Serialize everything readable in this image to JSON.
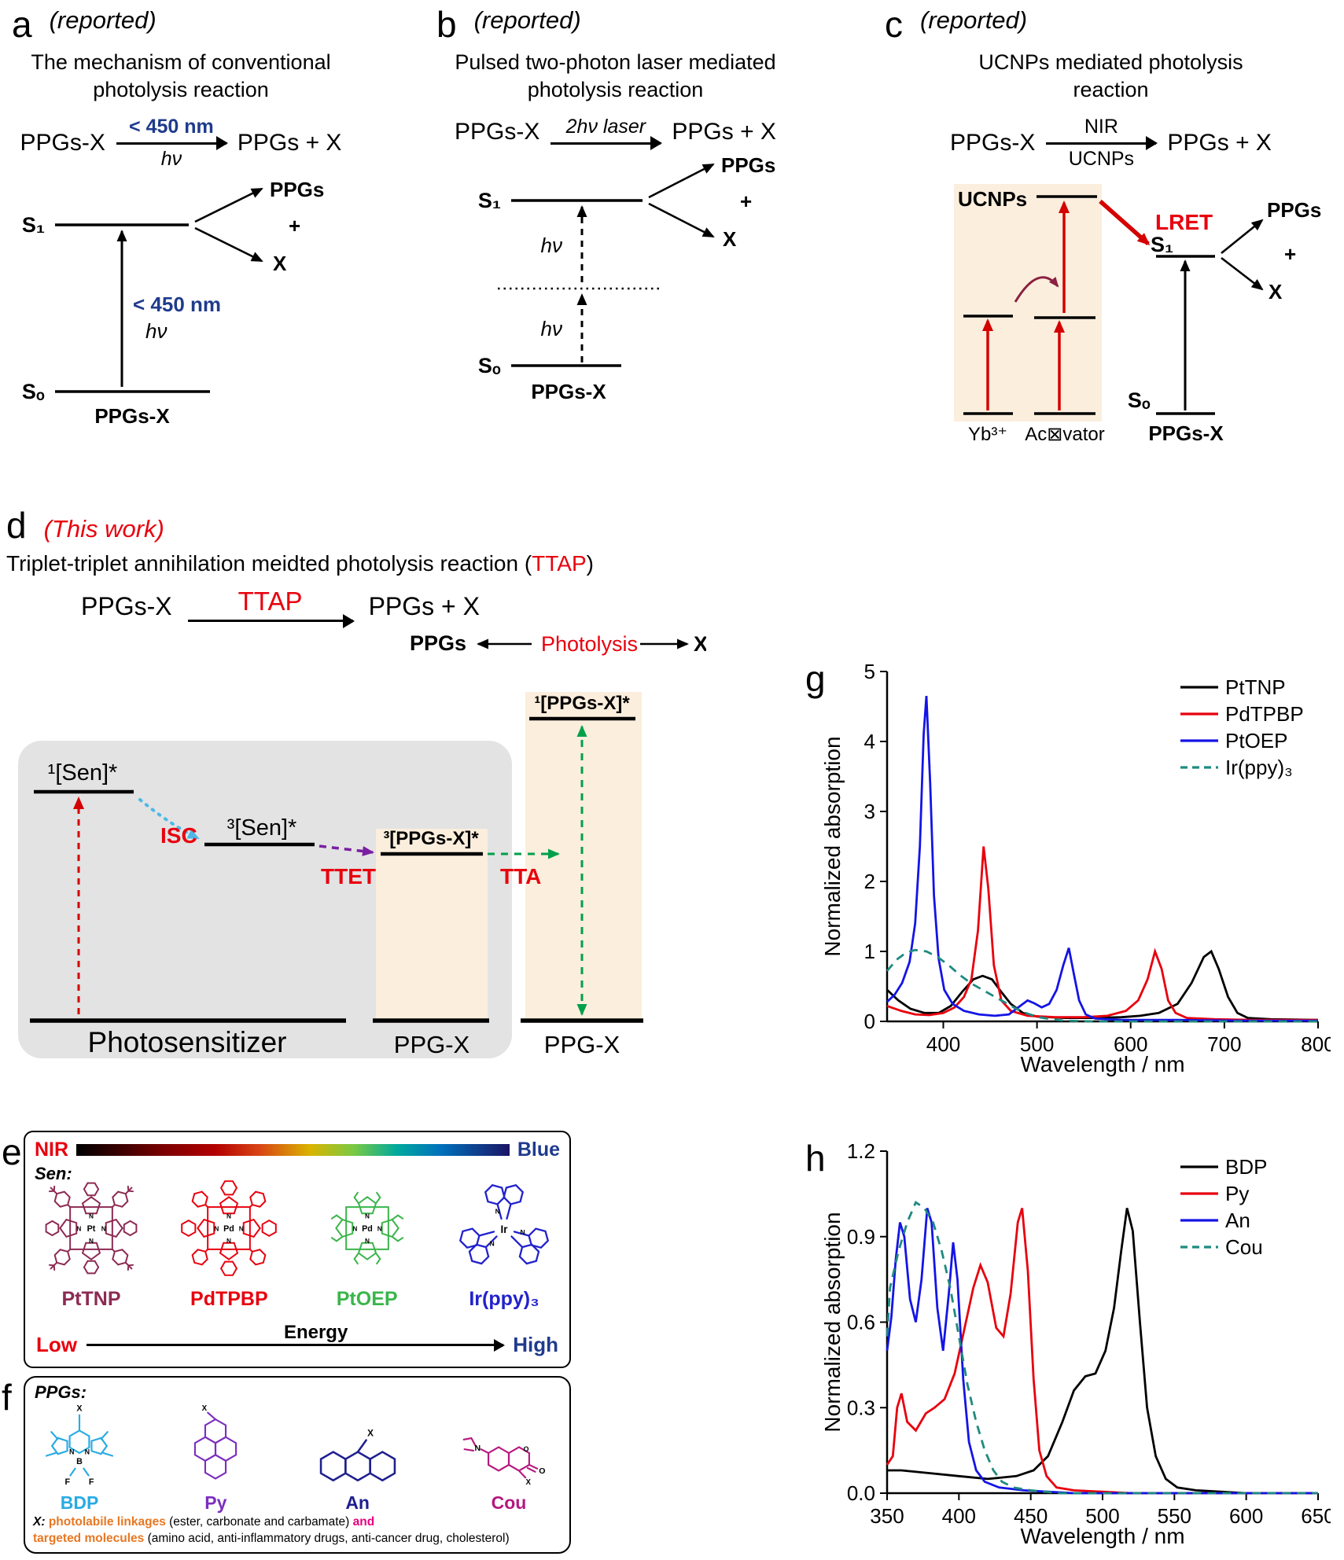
{
  "panel_a": {
    "label": "a",
    "tag": "(reported)",
    "title_line1": "The mechanism of conventional",
    "title_line2": "photolysis reaction",
    "reactant": "PPGs-X",
    "arrow_top": "< 450 nm",
    "arrow_bottom": "hν",
    "product": "PPGs + X",
    "s1": "S₁",
    "s0": "Sₒ",
    "exc_top": "< 450 nm",
    "exc_bottom": "hν",
    "ground": "PPGs-X",
    "prod_top": "PPGs",
    "plus": "+",
    "prod_bottom": "X"
  },
  "panel_b": {
    "label": "b",
    "tag": "(reported)",
    "title_line1": "Pulsed two-photon laser mediated",
    "title_line2": "photolysis reaction",
    "reactant": "PPGs-X",
    "arrow_top": "2hν laser",
    "product": "PPGs + X",
    "s1": "S₁",
    "s0": "Sₒ",
    "hv1": "hν",
    "hv2": "hν",
    "ground": "PPGs-X",
    "prod_top": "PPGs",
    "plus": "+",
    "prod_bottom": "X"
  },
  "panel_c": {
    "label": "c",
    "tag": "(reported)",
    "title_line1": "UCNPs mediated photolysis",
    "title_line2": "reaction",
    "reactant": "PPGs-X",
    "arrow_top": "NIR",
    "arrow_bottom": "UCNPs",
    "product": "PPGs + X",
    "ucnps": "UCNPs",
    "lret": "LRET",
    "yb": "Yb³⁺",
    "activator": "Ac⊠vator",
    "s1": "S₁",
    "s0": "Sₒ",
    "ground": "PPGs-X",
    "prod_top": "PPGs",
    "plus": "+",
    "prod_bottom": "X"
  },
  "panel_d": {
    "label": "d",
    "tag": "(This work)",
    "title_black1": "Triplet-triplet annihilation meidted photolysis reaction (",
    "title_red": "TTAP",
    "title_black2": ")",
    "reactant": "PPGs-X",
    "arrow_top": "TTAP",
    "product": "PPGs + X",
    "ppgs": "PPGs",
    "photolysis": "Photolysis",
    "x": "X",
    "sen1": "¹[Sen]*",
    "sen3": "³[Sen]*",
    "isc": "ISC",
    "ttet": "TTET",
    "tta": "TTA",
    "ppgsx3": "³[PPGs-X]*",
    "ppgsx1": "¹[PPGs-X]*",
    "photosensitizer": "Photosensitizer",
    "ppgx_left": "PPG-X",
    "ppgx_right": "PPG-X"
  },
  "panel_e": {
    "label": "e",
    "nir": "NIR",
    "blue": "Blue",
    "sen": "Sen:",
    "molecules": [
      {
        "name": "PtTNP",
        "metal": "Pt",
        "color": "#8c2a52"
      },
      {
        "name": "PdTPBP",
        "metal": "Pd",
        "color": "#e8000d"
      },
      {
        "name": "PtOEP",
        "metal": "Pd",
        "color": "#3ab54a"
      },
      {
        "name": "Ir(ppy)₃",
        "metal": "Ir",
        "color": "#2222cc"
      }
    ],
    "low": "Low",
    "energy": "Energy",
    "high": "High"
  },
  "panel_f": {
    "label": "f",
    "ppgs": "PPGs:",
    "molecules": [
      {
        "name": "BDP",
        "color": "#29abe2"
      },
      {
        "name": "Py",
        "color": "#7b2fbe"
      },
      {
        "name": "An",
        "color": "#1f1f8f"
      },
      {
        "name": "Cou",
        "color": "#b5177e"
      }
    ],
    "x_label": "X:",
    "line1_orange": "photolabile linkages",
    "line1_black": " (ester, carbonate and carbamate) ",
    "line1_pink": "and",
    "line2_orange": "targeted molecules",
    "line2_black": " (amino acid, anti-inflammatory drugs, anti-cancer drug, cholesterol)"
  },
  "panel_g_label": "g",
  "panel_h_label": "h",
  "colors": {
    "accent_red": "#e8000d",
    "navy": "#1f3b8c",
    "teal_dashed": "#1f8a80",
    "peach_bg": "#fbeedd",
    "gray_box": "#e3e3e3"
  },
  "chart_data": [
    {
      "id": "g",
      "type": "line",
      "title": "",
      "xlabel": "Wavelength / nm",
      "ylabel": "Normalized absorption",
      "xlim": [
        340,
        800
      ],
      "ylim": [
        0,
        5
      ],
      "xticks": [
        400,
        500,
        600,
        700,
        800
      ],
      "yticks": [
        "0",
        "1",
        "2",
        "3",
        "4",
        "5"
      ],
      "grid": false,
      "legend_position": "top-right",
      "series": [
        {
          "name": "PtTNP",
          "color": "#000000",
          "dash": null,
          "points": [
            [
              340,
              0.45
            ],
            [
              352,
              0.3
            ],
            [
              365,
              0.18
            ],
            [
              380,
              0.12
            ],
            [
              395,
              0.12
            ],
            [
              408,
              0.22
            ],
            [
              420,
              0.42
            ],
            [
              432,
              0.6
            ],
            [
              442,
              0.65
            ],
            [
              452,
              0.6
            ],
            [
              462,
              0.42
            ],
            [
              472,
              0.25
            ],
            [
              485,
              0.12
            ],
            [
              500,
              0.07
            ],
            [
              530,
              0.05
            ],
            [
              560,
              0.05
            ],
            [
              590,
              0.06
            ],
            [
              610,
              0.08
            ],
            [
              630,
              0.12
            ],
            [
              650,
              0.25
            ],
            [
              665,
              0.55
            ],
            [
              678,
              0.92
            ],
            [
              686,
              1.0
            ],
            [
              694,
              0.75
            ],
            [
              704,
              0.35
            ],
            [
              714,
              0.12
            ],
            [
              725,
              0.05
            ],
            [
              750,
              0.03
            ],
            [
              800,
              0.02
            ]
          ]
        },
        {
          "name": "PdTPBP",
          "color": "#e8000d",
          "dash": null,
          "points": [
            [
              340,
              0.22
            ],
            [
              355,
              0.15
            ],
            [
              370,
              0.1
            ],
            [
              385,
              0.09
            ],
            [
              400,
              0.12
            ],
            [
              412,
              0.2
            ],
            [
              422,
              0.35
            ],
            [
              430,
              0.6
            ],
            [
              437,
              1.3
            ],
            [
              443,
              2.5
            ],
            [
              448,
              1.9
            ],
            [
              454,
              0.8
            ],
            [
              462,
              0.3
            ],
            [
              472,
              0.15
            ],
            [
              490,
              0.08
            ],
            [
              520,
              0.06
            ],
            [
              550,
              0.06
            ],
            [
              575,
              0.08
            ],
            [
              595,
              0.15
            ],
            [
              608,
              0.3
            ],
            [
              618,
              0.6
            ],
            [
              626,
              1.0
            ],
            [
              633,
              0.75
            ],
            [
              640,
              0.3
            ],
            [
              648,
              0.12
            ],
            [
              660,
              0.05
            ],
            [
              690,
              0.03
            ],
            [
              730,
              0.02
            ],
            [
              800,
              0.02
            ]
          ]
        },
        {
          "name": "PtOEP",
          "color": "#1414e6",
          "dash": null,
          "points": [
            [
              340,
              0.28
            ],
            [
              348,
              0.38
            ],
            [
              356,
              0.55
            ],
            [
              364,
              0.85
            ],
            [
              370,
              1.4
            ],
            [
              375,
              2.5
            ],
            [
              379,
              4.1
            ],
            [
              382,
              4.65
            ],
            [
              386,
              3.4
            ],
            [
              390,
              1.8
            ],
            [
              395,
              0.9
            ],
            [
              401,
              0.45
            ],
            [
              410,
              0.25
            ],
            [
              422,
              0.15
            ],
            [
              438,
              0.1
            ],
            [
              455,
              0.08
            ],
            [
              470,
              0.1
            ],
            [
              482,
              0.22
            ],
            [
              490,
              0.3
            ],
            [
              497,
              0.26
            ],
            [
              505,
              0.2
            ],
            [
              513,
              0.25
            ],
            [
              521,
              0.45
            ],
            [
              528,
              0.8
            ],
            [
              534,
              1.05
            ],
            [
              539,
              0.7
            ],
            [
              545,
              0.3
            ],
            [
              552,
              0.1
            ],
            [
              562,
              0.04
            ],
            [
              590,
              0.02
            ],
            [
              650,
              0.02
            ],
            [
              720,
              0.01
            ],
            [
              800,
              0.01
            ]
          ]
        },
        {
          "name": "Ir(ppy)₃",
          "color": "#1f8a80",
          "dash": "11,8",
          "points": [
            [
              340,
              0.72
            ],
            [
              350,
              0.88
            ],
            [
              360,
              0.98
            ],
            [
              370,
              1.02
            ],
            [
              382,
              1.0
            ],
            [
              394,
              0.92
            ],
            [
              406,
              0.8
            ],
            [
              418,
              0.66
            ],
            [
              430,
              0.54
            ],
            [
              442,
              0.45
            ],
            [
              454,
              0.36
            ],
            [
              466,
              0.27
            ],
            [
              478,
              0.18
            ],
            [
              490,
              0.11
            ],
            [
              502,
              0.06
            ],
            [
              515,
              0.03
            ],
            [
              530,
              0.01
            ],
            [
              560,
              0.0
            ],
            [
              650,
              0.0
            ],
            [
              800,
              0.0
            ]
          ]
        }
      ]
    },
    {
      "id": "h",
      "type": "line",
      "title": "",
      "xlabel": "Wavelength / nm",
      "ylabel": "Normalized absorption",
      "xlim": [
        350,
        650
      ],
      "ylim": [
        0,
        1.2
      ],
      "xticks": [
        350,
        400,
        450,
        500,
        550,
        600,
        650
      ],
      "yticks": [
        "0.0",
        "0.3",
        "0.6",
        "0.9",
        "1.2"
      ],
      "grid": false,
      "legend_position": "top-right",
      "series": [
        {
          "name": "BDP",
          "color": "#000000",
          "dash": null,
          "points": [
            [
              350,
              0.08
            ],
            [
              360,
              0.08
            ],
            [
              380,
              0.07
            ],
            [
              400,
              0.06
            ],
            [
              420,
              0.05
            ],
            [
              440,
              0.06
            ],
            [
              452,
              0.08
            ],
            [
              462,
              0.13
            ],
            [
              472,
              0.25
            ],
            [
              480,
              0.36
            ],
            [
              488,
              0.41
            ],
            [
              495,
              0.42
            ],
            [
              502,
              0.5
            ],
            [
              508,
              0.65
            ],
            [
              513,
              0.85
            ],
            [
              517,
              1.0
            ],
            [
              521,
              0.92
            ],
            [
              526,
              0.6
            ],
            [
              531,
              0.3
            ],
            [
              537,
              0.13
            ],
            [
              544,
              0.05
            ],
            [
              552,
              0.02
            ],
            [
              565,
              0.01
            ],
            [
              600,
              0.0
            ],
            [
              650,
              0.0
            ]
          ]
        },
        {
          "name": "Py",
          "color": "#e8000d",
          "dash": null,
          "points": [
            [
              350,
              0.1
            ],
            [
              354,
              0.13
            ],
            [
              357,
              0.3
            ],
            [
              360,
              0.35
            ],
            [
              364,
              0.25
            ],
            [
              370,
              0.22
            ],
            [
              377,
              0.28
            ],
            [
              383,
              0.3
            ],
            [
              390,
              0.33
            ],
            [
              397,
              0.42
            ],
            [
              404,
              0.58
            ],
            [
              410,
              0.72
            ],
            [
              415,
              0.8
            ],
            [
              420,
              0.74
            ],
            [
              426,
              0.58
            ],
            [
              431,
              0.55
            ],
            [
              436,
              0.7
            ],
            [
              441,
              0.95
            ],
            [
              444,
              1.0
            ],
            [
              448,
              0.78
            ],
            [
              452,
              0.4
            ],
            [
              456,
              0.15
            ],
            [
              461,
              0.06
            ],
            [
              468,
              0.02
            ],
            [
              480,
              0.01
            ],
            [
              520,
              0.0
            ],
            [
              650,
              0.0
            ]
          ]
        },
        {
          "name": "An",
          "color": "#1414e6",
          "dash": null,
          "points": [
            [
              350,
              0.5
            ],
            [
              353,
              0.62
            ],
            [
              356,
              0.82
            ],
            [
              359,
              0.95
            ],
            [
              362,
              0.9
            ],
            [
              366,
              0.68
            ],
            [
              370,
              0.6
            ],
            [
              374,
              0.75
            ],
            [
              378,
              1.0
            ],
            [
              381,
              0.95
            ],
            [
              385,
              0.65
            ],
            [
              389,
              0.5
            ],
            [
              393,
              0.7
            ],
            [
              396,
              0.88
            ],
            [
              399,
              0.75
            ],
            [
              403,
              0.4
            ],
            [
              407,
              0.18
            ],
            [
              412,
              0.08
            ],
            [
              418,
              0.04
            ],
            [
              428,
              0.02
            ],
            [
              445,
              0.01
            ],
            [
              480,
              0.0
            ],
            [
              650,
              0.0
            ]
          ]
        },
        {
          "name": "Cou",
          "color": "#1f8a80",
          "dash": "11,8",
          "points": [
            [
              350,
              0.55
            ],
            [
              352,
              0.72
            ],
            [
              358,
              0.85
            ],
            [
              364,
              0.95
            ],
            [
              370,
              1.02
            ],
            [
              376,
              1.0
            ],
            [
              382,
              0.95
            ],
            [
              388,
              0.85
            ],
            [
              394,
              0.72
            ],
            [
              400,
              0.55
            ],
            [
              406,
              0.38
            ],
            [
              412,
              0.25
            ],
            [
              418,
              0.15
            ],
            [
              424,
              0.08
            ],
            [
              430,
              0.04
            ],
            [
              438,
              0.02
            ],
            [
              450,
              0.01
            ],
            [
              470,
              0.0
            ],
            [
              650,
              0.0
            ]
          ]
        }
      ]
    }
  ]
}
